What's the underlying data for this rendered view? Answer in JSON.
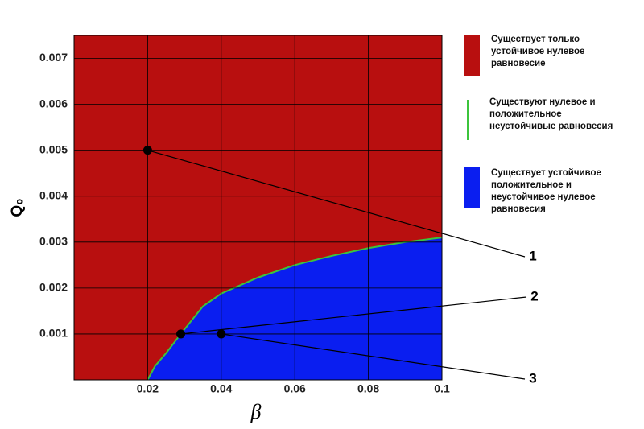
{
  "chart_data": {
    "type": "region",
    "xlabel": "β",
    "ylabel": "Q₀",
    "xlim": [
      0,
      0.1
    ],
    "ylim": [
      0,
      0.0075
    ],
    "xticks": [
      0.02,
      0.04,
      0.06,
      0.08,
      0.1
    ],
    "yticks": [
      0.001,
      0.002,
      0.003,
      0.004,
      0.005,
      0.006,
      0.007
    ],
    "grid": true,
    "series": [
      {
        "name": "Существует только устойчивое нулевое равновесие",
        "color": "#b80f0f"
      },
      {
        "name": "Существуют нулевое и положительное неустойчивые равновесия",
        "color": "#3cc43c",
        "x": [
          0.02,
          0.022,
          0.025,
          0.029,
          0.035,
          0.04,
          0.05,
          0.06,
          0.07,
          0.08,
          0.09,
          0.1
        ],
        "values": [
          0,
          0.0003,
          0.00058,
          0.001,
          0.0016,
          0.00188,
          0.00223,
          0.0025,
          0.0027,
          0.00287,
          0.003,
          0.0031
        ]
      },
      {
        "name": "Существует устойчивое положительное и неустойчивое нулевое равновесия",
        "color": "#0a1ef0"
      }
    ],
    "annotations": [
      {
        "text": "1",
        "x": 0.02,
        "y": 0.005
      },
      {
        "text": "2",
        "x": 0.029,
        "y": 0.001
      },
      {
        "text": "3",
        "x": 0.04,
        "y": 0.001
      }
    ]
  }
}
